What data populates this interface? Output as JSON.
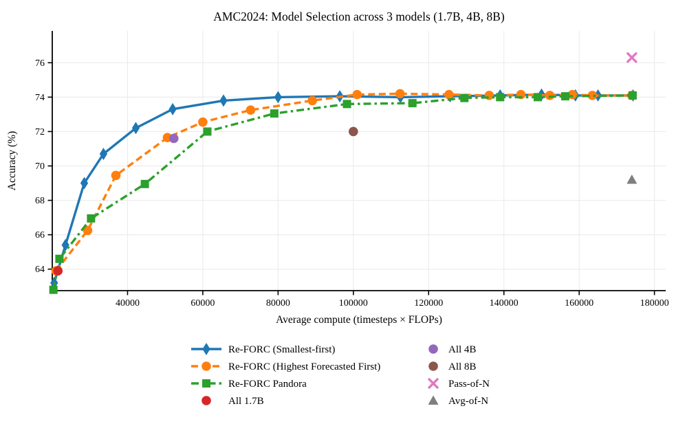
{
  "chart_data": {
    "type": "line",
    "title": "AMC2024: Model Selection across 3 models (1.7B, 4B, 8B)",
    "xlabel": "Average compute (timesteps × FLOPs)",
    "ylabel": "Accuracy (%)",
    "xlim": [
      20000,
      183000
    ],
    "ylim": [
      62.75,
      77.85
    ],
    "xticks": [
      40000,
      60000,
      80000,
      100000,
      120000,
      140000,
      160000,
      180000
    ],
    "yticks": [
      64,
      66,
      68,
      70,
      72,
      74,
      76
    ],
    "grid": true,
    "legend_position": "below",
    "legend_columns": 2,
    "series": [
      {
        "name": "Re-FORC (Smallest-first)",
        "color": "#1f77b4",
        "marker": "diamond",
        "line": "solid",
        "points": [
          [
            20500,
            63.2
          ],
          [
            23500,
            65.4
          ],
          [
            28500,
            69.0
          ],
          [
            33600,
            70.7
          ],
          [
            42200,
            72.2
          ],
          [
            52000,
            73.3
          ],
          [
            65500,
            73.8
          ],
          [
            80000,
            74.0
          ],
          [
            96400,
            74.05
          ],
          [
            112500,
            74.0
          ],
          [
            125700,
            74.05
          ],
          [
            139000,
            74.1
          ],
          [
            150000,
            74.15
          ],
          [
            159000,
            74.1
          ],
          [
            165000,
            74.1
          ],
          [
            174300,
            74.1
          ]
        ]
      },
      {
        "name": "Re-FORC (Highest Forecasted First)",
        "color": "#ff7f0e",
        "marker": "circle",
        "line": "dashed",
        "points": [
          [
            21000,
            63.9
          ],
          [
            29400,
            66.25
          ],
          [
            36900,
            69.45
          ],
          [
            50600,
            71.65
          ],
          [
            60000,
            72.55
          ],
          [
            72700,
            73.25
          ],
          [
            89100,
            73.8
          ],
          [
            101000,
            74.15
          ],
          [
            112400,
            74.2
          ],
          [
            125400,
            74.15
          ],
          [
            136100,
            74.1
          ],
          [
            144500,
            74.15
          ],
          [
            152200,
            74.1
          ],
          [
            158200,
            74.15
          ],
          [
            163500,
            74.1
          ],
          [
            174000,
            74.1
          ]
        ]
      },
      {
        "name": "Re-FORC Pandora",
        "color": "#2ca02c",
        "marker": "square",
        "line": "dashdot",
        "points": [
          [
            20300,
            62.8
          ],
          [
            21900,
            64.6
          ],
          [
            30300,
            66.95
          ],
          [
            44600,
            68.95
          ],
          [
            61200,
            72.0
          ],
          [
            79000,
            73.05
          ],
          [
            98300,
            73.6
          ],
          [
            115700,
            73.65
          ],
          [
            129500,
            73.95
          ],
          [
            139000,
            74.0
          ],
          [
            149000,
            74.0
          ],
          [
            156300,
            74.05
          ],
          [
            174200,
            74.1
          ]
        ]
      }
    ],
    "scatter": [
      {
        "name": "All 1.7B",
        "color": "#d62728",
        "marker": "circle",
        "point": [
          21500,
          63.9
        ]
      },
      {
        "name": "All 4B",
        "color": "#9467bd",
        "marker": "circle",
        "point": [
          52300,
          71.6
        ]
      },
      {
        "name": "All 8B",
        "color": "#8c564b",
        "marker": "circle",
        "point": [
          100000,
          72.0
        ]
      },
      {
        "name": "Pass-of-N",
        "color": "#e377c2",
        "marker": "x",
        "point": [
          174000,
          76.3
        ]
      },
      {
        "name": "Avg-of-N",
        "color": "#7f7f7f",
        "marker": "triangle",
        "point": [
          174000,
          69.2
        ]
      }
    ]
  }
}
